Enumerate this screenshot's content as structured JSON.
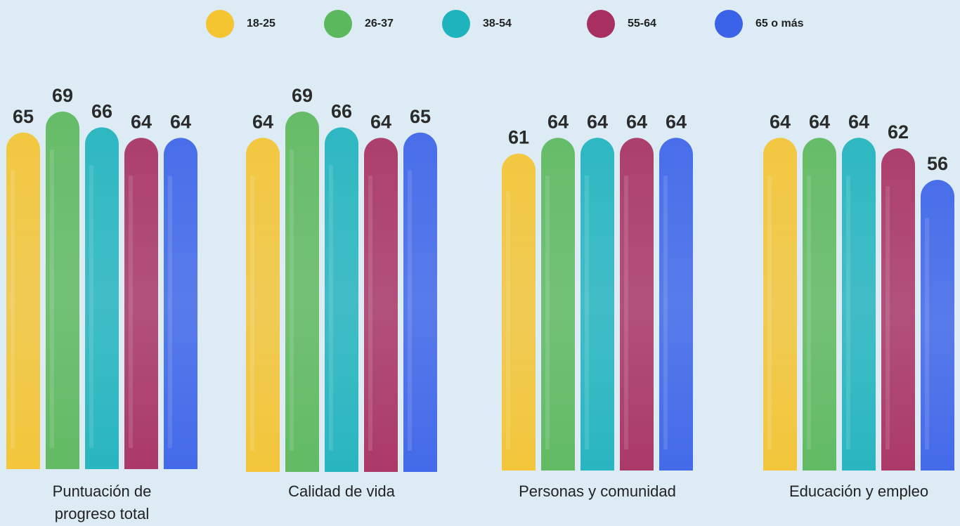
{
  "chart_data": {
    "type": "bar",
    "categories": [
      [
        "Puntuación de",
        "progreso total"
      ],
      [
        "Calidad de vida"
      ],
      [
        "Personas y comunidad"
      ],
      [
        "Educación y empleo"
      ]
    ],
    "series": [
      {
        "name": "18-25",
        "color": "#f4c431",
        "values": [
          65,
          64,
          61,
          64
        ]
      },
      {
        "name": "26-37",
        "color": "#5cb85c",
        "values": [
          69,
          69,
          64,
          64
        ]
      },
      {
        "name": "38-54",
        "color": "#1fb3bd",
        "values": [
          66,
          66,
          64,
          64
        ]
      },
      {
        "name": "55-64",
        "color": "#a83060",
        "values": [
          64,
          64,
          64,
          62
        ]
      },
      {
        "name": "65 o más",
        "color": "#3b63e8",
        "values": [
          64,
          65,
          64,
          56
        ]
      }
    ],
    "legend_position": "top",
    "grid": false
  }
}
